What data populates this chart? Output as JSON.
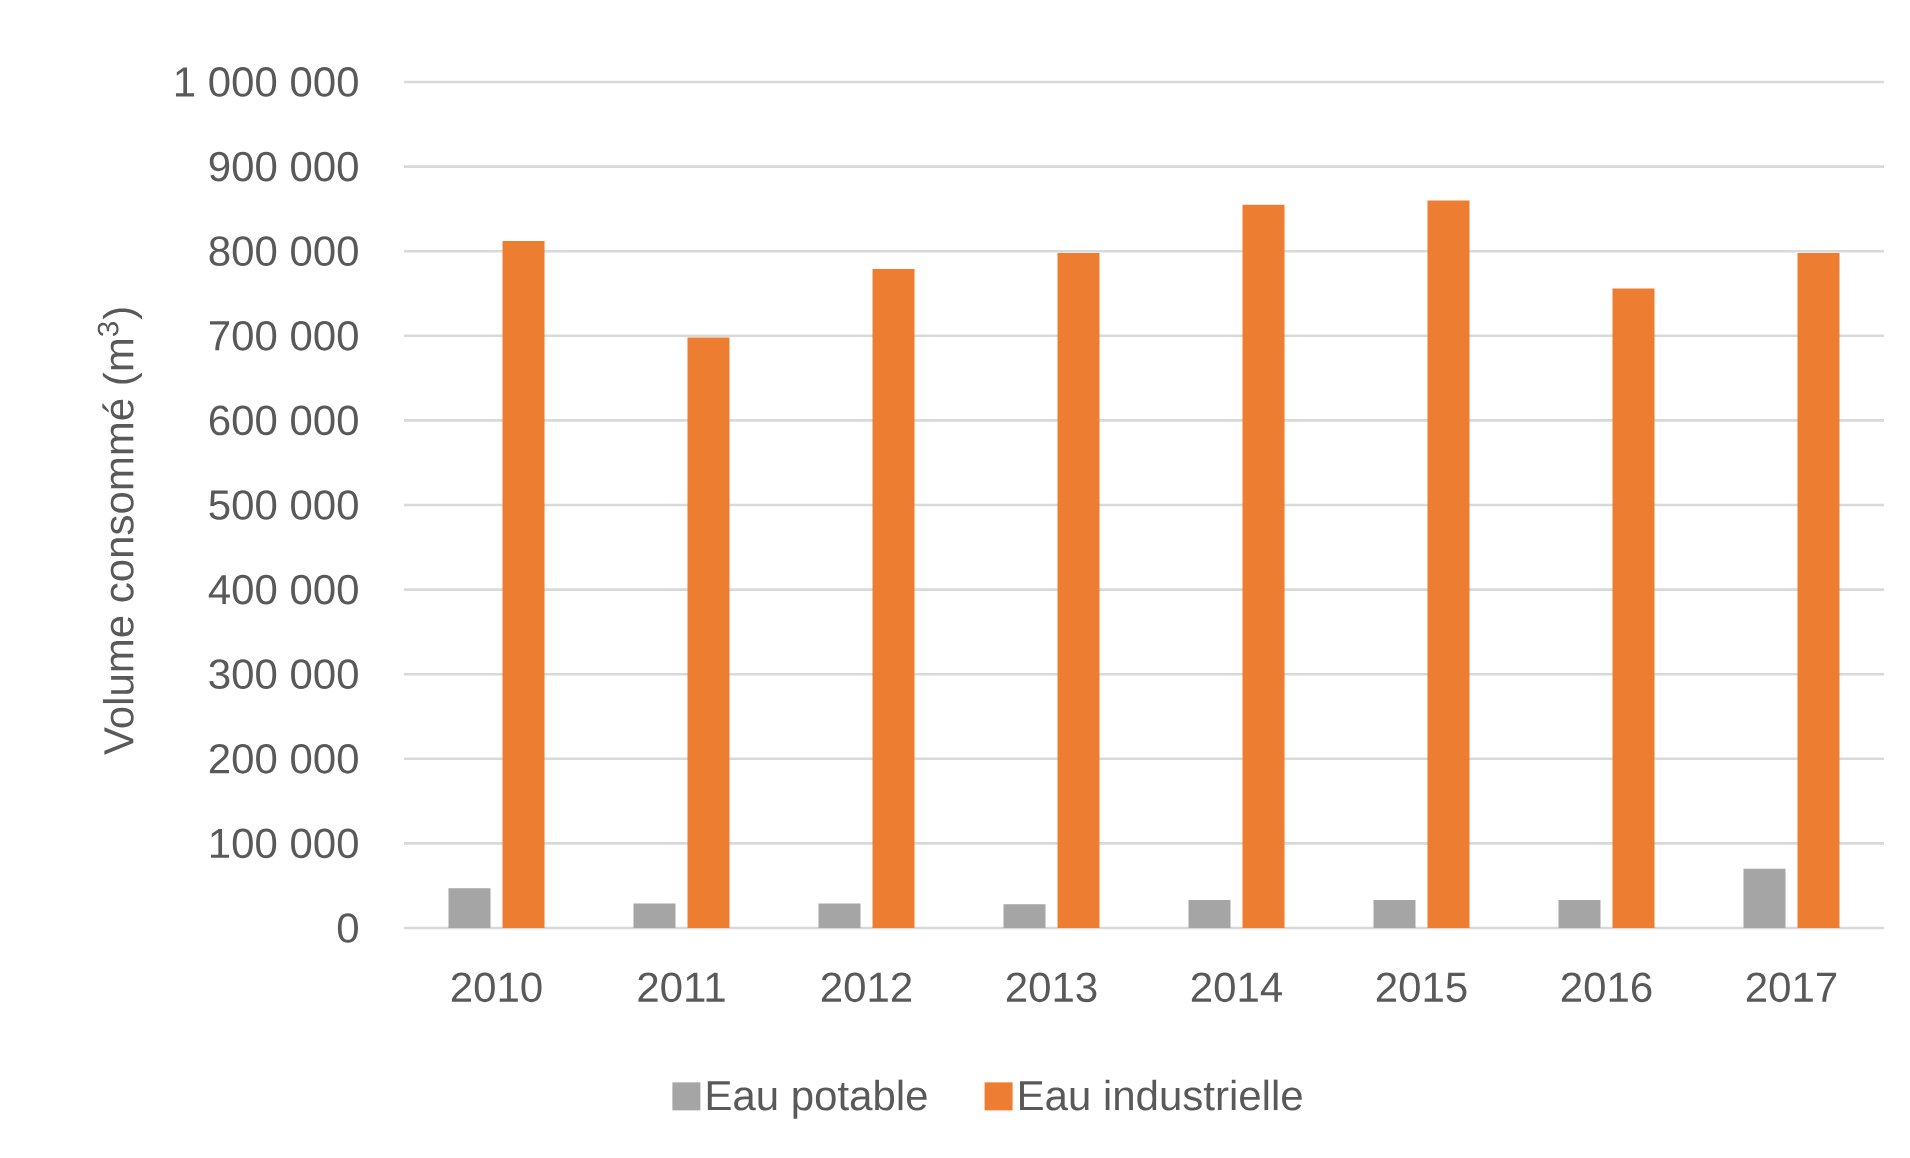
{
  "chart_data": {
    "type": "bar",
    "categories": [
      "2010",
      "2011",
      "2012",
      "2013",
      "2014",
      "2015",
      "2016",
      "2017"
    ],
    "ylabel": "Volume consommé (m$^{3}$)",
    "series": [
      {
        "name": "Eau potable",
        "color": "#a5a5a5",
        "values": [
          47000,
          29000,
          29000,
          28000,
          33000,
          33000,
          33000,
          70000
        ]
      },
      {
        "name": "Eau industrielle",
        "color": "#ed7d31",
        "values": [
          812000,
          698000,
          779000,
          798000,
          855000,
          860000,
          756000,
          798000
        ]
      }
    ],
    "ylim": [
      0,
      1000000
    ],
    "yticks": [
      0,
      {
        "value": 100000,
        "label": "100 000"
      },
      {
        "value": 200000,
        "label": "200 000"
      },
      {
        "value": 300000,
        "label": "300 000"
      },
      {
        "value": 400000,
        "label": "400 000"
      },
      {
        "value": 500000,
        "label": "500 000"
      },
      {
        "value": 600000,
        "label": "600 000"
      },
      {
        "value": 700000,
        "label": "700 000"
      },
      {
        "value": 800000,
        "label": "800 000"
      },
      {
        "value": 900000,
        "label": "900 000"
      },
      {
        "value": 1000000,
        "label": "1 000 000"
      }
    ],
    "grid": "y",
    "legend": "bottom"
  }
}
